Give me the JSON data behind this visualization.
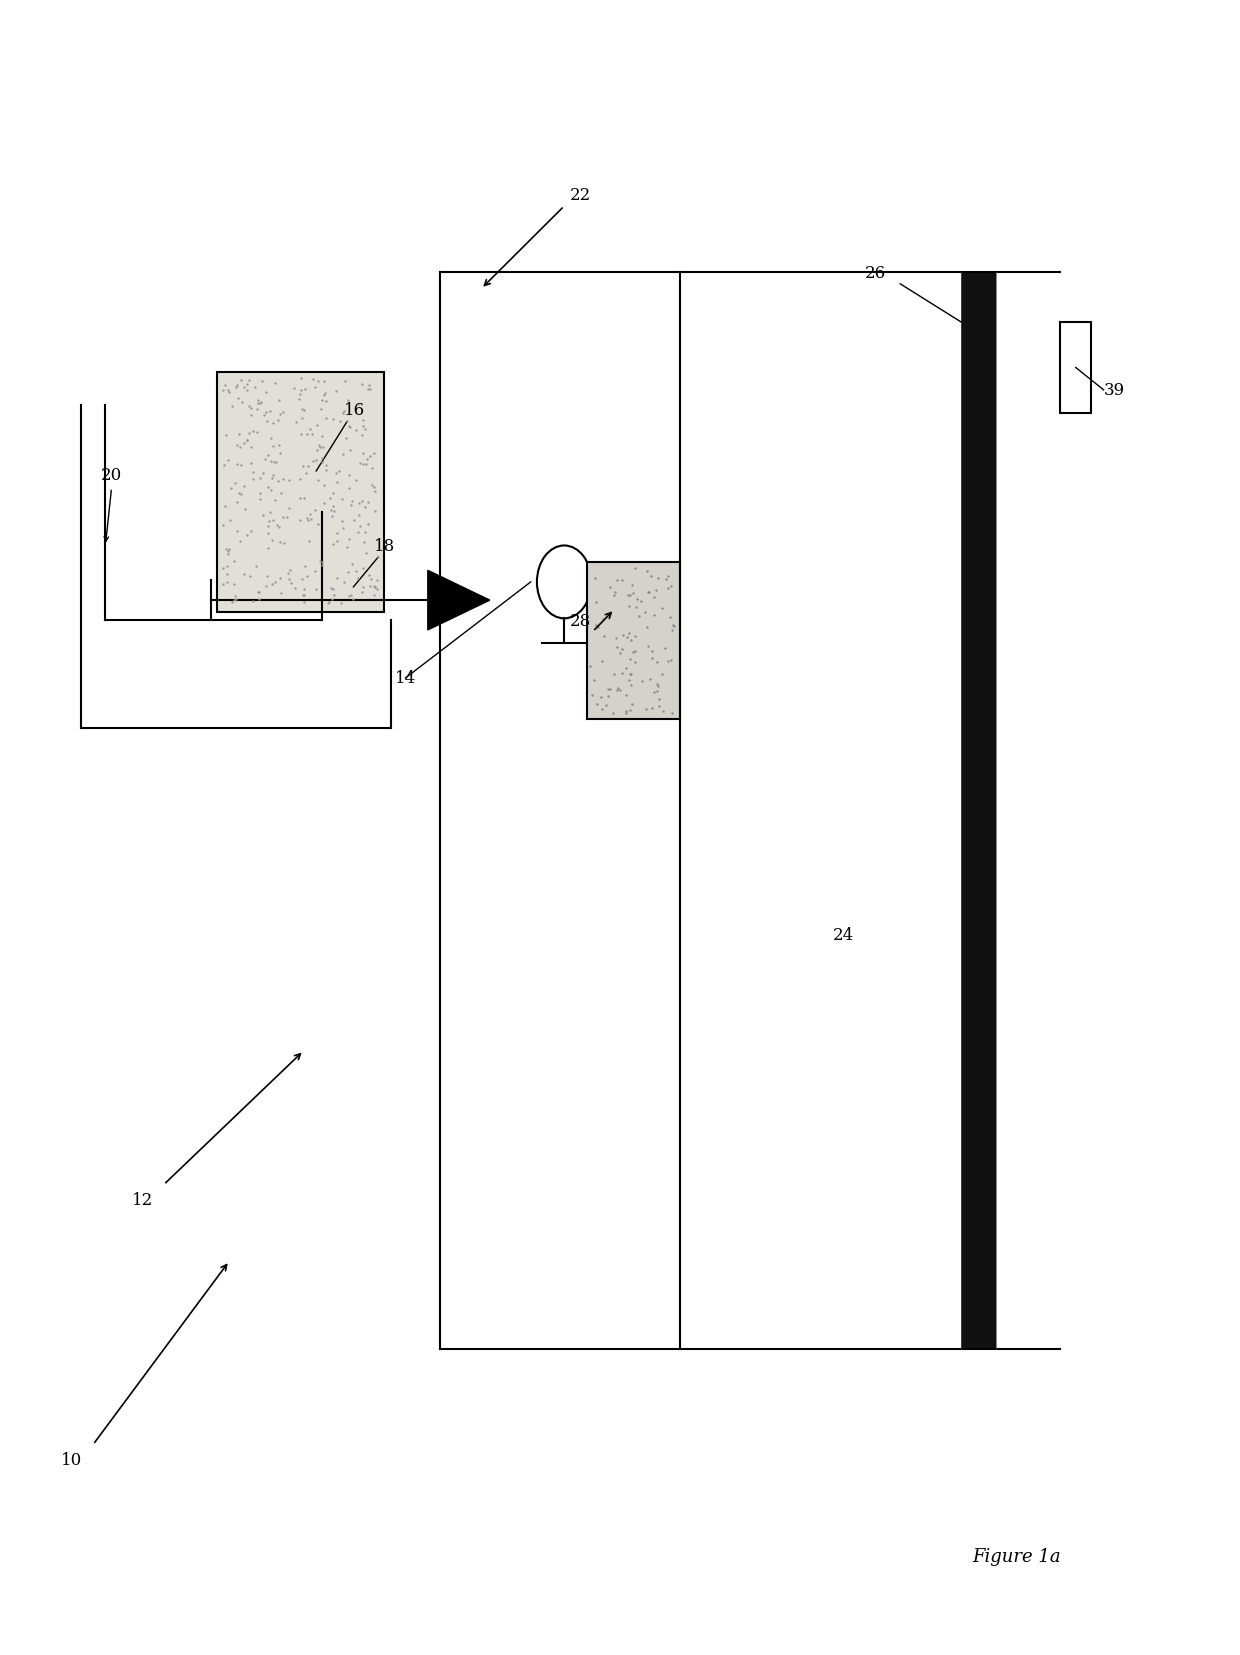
{
  "bg_color": "#ffffff",
  "fig_width": 12.4,
  "fig_height": 16.56,
  "dpi": 100,
  "black": "#000000",
  "lw": 1.5
}
